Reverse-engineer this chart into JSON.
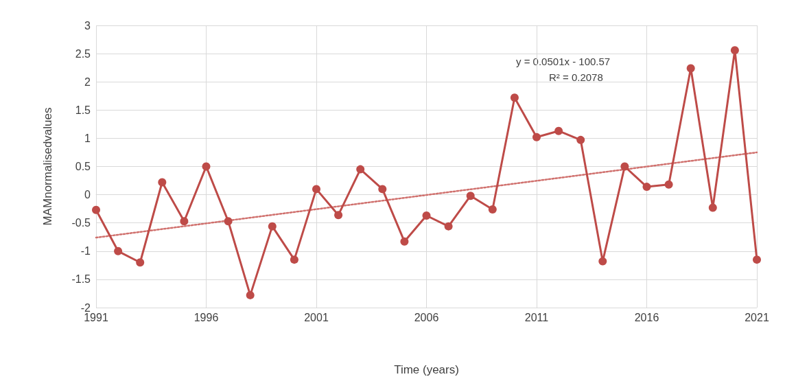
{
  "chart_data": {
    "type": "line",
    "xlabel": "Time (years)",
    "ylabel": "MAMnormalisedvalues",
    "xlim": [
      1991,
      2021
    ],
    "xticks": [
      1991,
      1996,
      2001,
      2006,
      2011,
      2016,
      2021
    ],
    "ylim": [
      -2,
      3
    ],
    "yticks": [
      -2,
      -1.5,
      -1,
      -0.5,
      0,
      0.5,
      1,
      1.5,
      2,
      2.5,
      3
    ],
    "grid": true,
    "marker": "circle",
    "line_style": "solid",
    "series": [
      {
        "color": "#be4b48",
        "x": [
          1991,
          1992,
          1993,
          1994,
          1995,
          1996,
          1997,
          1998,
          1999,
          2000,
          2001,
          2002,
          2003,
          2004,
          2005,
          2006,
          2007,
          2008,
          2009,
          2010,
          2011,
          2012,
          2013,
          2014,
          2015,
          2016,
          2017,
          2018,
          2019,
          2020,
          2021
        ],
        "values": [
          -0.27,
          -1.0,
          -1.2,
          0.22,
          -0.47,
          0.5,
          -0.47,
          -1.78,
          -0.56,
          -1.15,
          0.1,
          -0.36,
          0.45,
          0.1,
          -0.83,
          -0.37,
          -0.56,
          -0.02,
          -0.26,
          1.72,
          1.02,
          1.13,
          0.97,
          -1.18,
          0.5,
          0.14,
          0.18,
          2.24,
          -0.23,
          2.56,
          -1.15
        ]
      },
      {
        "type": "line",
        "color": "#d0706d",
        "x": [
          1991,
          2021
        ],
        "values": [
          -0.76,
          0.75
        ],
        "marker": "none",
        "line_style": "dotted"
      }
    ],
    "annotations": [
      "y = 0.0501x - 100.57",
      "R² = 0.2078"
    ]
  }
}
